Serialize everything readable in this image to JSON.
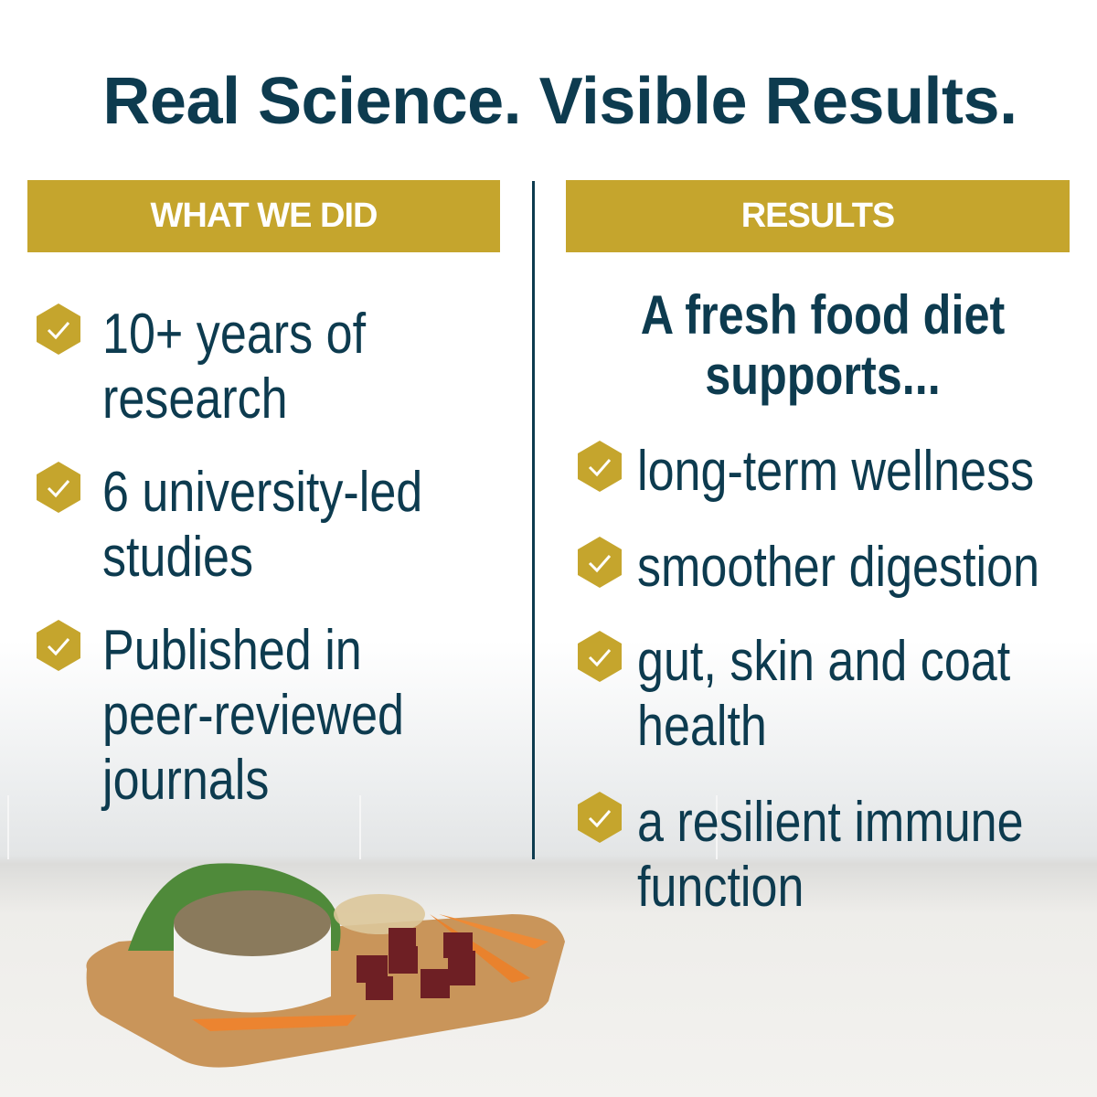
{
  "title": "Real Science. Visible Results.",
  "left": {
    "banner": "WHAT WE DID",
    "items": [
      {
        "text": "10+ years of research"
      },
      {
        "text": "6 university-led studies"
      },
      {
        "text": "Published in peer-reviewed journals"
      }
    ]
  },
  "right": {
    "banner": "RESULTS",
    "heading": "A fresh food diet supports...",
    "items": [
      {
        "text": "long-term wellness"
      },
      {
        "text": "smoother digestion"
      },
      {
        "text": "gut, skin and coat health"
      },
      {
        "text": "a resilient immune function"
      }
    ]
  },
  "icons": {
    "bullet": "hexagon-check-icon"
  },
  "colors": {
    "navy": "#0d3b4f",
    "gold": "#c5a52d"
  }
}
